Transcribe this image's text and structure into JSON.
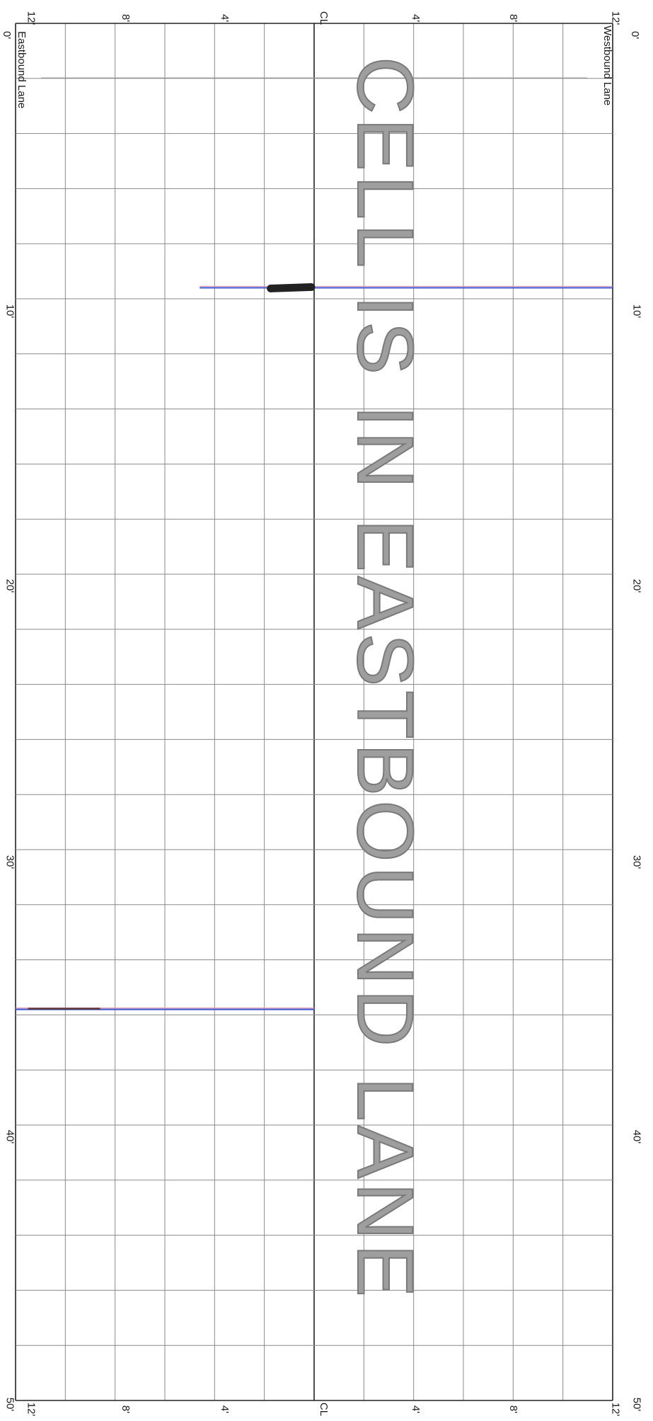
{
  "lanes": {
    "left_lane_label": "Eastbound Lane",
    "right_lane_label": "Westbound Lane",
    "centerline_label": "CL"
  },
  "offset_scale": {
    "left_ticks": [
      "12'",
      "8'",
      "4'"
    ],
    "center": "CL",
    "right_ticks": [
      "4'",
      "8'",
      "12'"
    ]
  },
  "length_scale": [
    "0'",
    "10'",
    "20'",
    "30'",
    "40'",
    "50'"
  ],
  "stamp_text": "CELL IS IN EASTBOUND LANE",
  "markings": {
    "crack_color": "#4b5bd1",
    "pen_color": "#e9a0b0",
    "spall_color": "#222222",
    "joints": [
      {
        "station_ft": 9.6,
        "from_offset_ft": -4.6,
        "to_offset_ft": 12
      },
      {
        "station_ft": 35.8,
        "from_offset_ft": -12,
        "to_offset_ft": 0
      }
    ],
    "spall": {
      "station_ft": 9.6,
      "from_offset_ft": -1.8,
      "to_offset_ft": 0
    }
  },
  "colors": {
    "grid": "#8a8a8a",
    "border": "#222222",
    "stamp": "#9e9e9e"
  }
}
